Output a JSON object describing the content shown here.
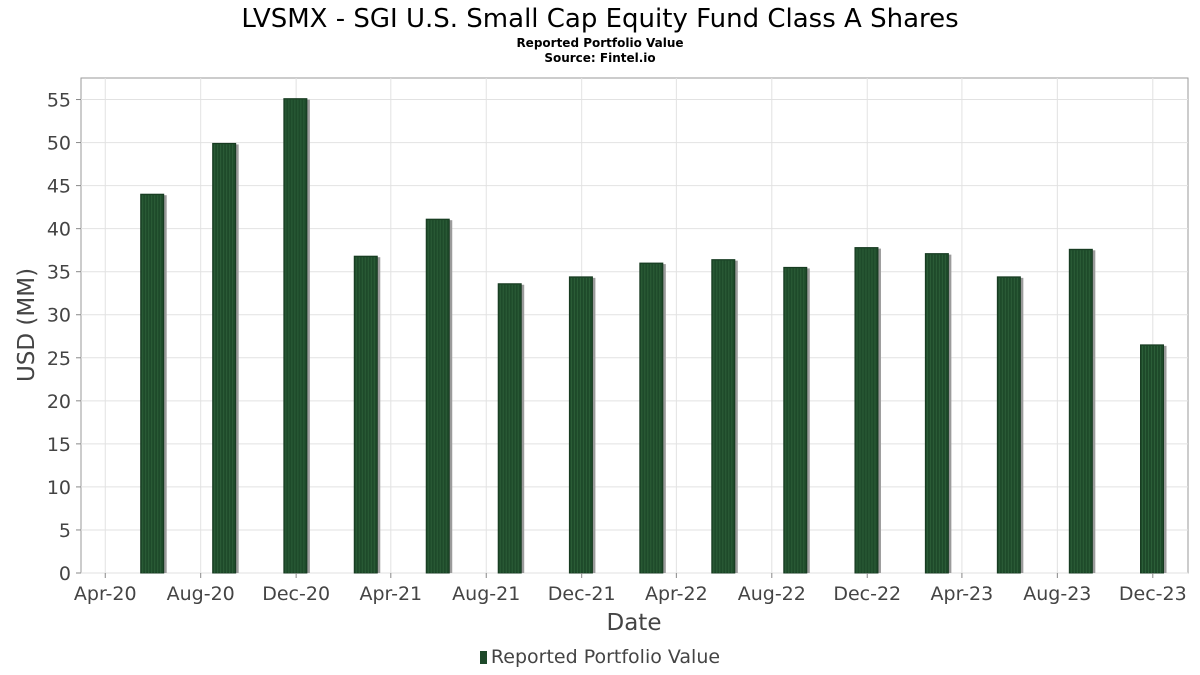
{
  "chart_data": {
    "type": "bar",
    "title": "LVSMX - SGI U.S. Small Cap Equity Fund Class A Shares",
    "subtitle": "Reported Portfolio Value",
    "source": "Source: Fintel.io",
    "xlabel": "Date",
    "ylabel": "USD (MM)",
    "ylim": [
      0,
      57.5
    ],
    "yticks": [
      0,
      5,
      10,
      15,
      20,
      25,
      30,
      35,
      40,
      45,
      50,
      55
    ],
    "xticks": [
      "Apr-20",
      "Aug-20",
      "Dec-20",
      "Apr-21",
      "Aug-21",
      "Dec-21",
      "Apr-22",
      "Aug-22",
      "Dec-22",
      "Apr-23",
      "Aug-23",
      "Dec-23"
    ],
    "grid": true,
    "legend_position": "bottom",
    "series": [
      {
        "name": "Reported Portfolio Value",
        "color": "#1e4a2a",
        "dates": [
          "2020-05-31",
          "2020-08-31",
          "2020-11-30",
          "2021-02-28",
          "2021-05-31",
          "2021-08-31",
          "2021-11-30",
          "2022-02-28",
          "2022-05-31",
          "2022-08-31",
          "2022-11-30",
          "2023-02-28",
          "2023-05-31",
          "2023-08-31",
          "2023-11-30"
        ],
        "values": [
          44.0,
          49.9,
          55.1,
          36.8,
          41.1,
          33.6,
          34.4,
          36.0,
          36.4,
          35.5,
          37.8,
          37.1,
          34.4,
          37.6,
          26.5
        ]
      }
    ]
  }
}
